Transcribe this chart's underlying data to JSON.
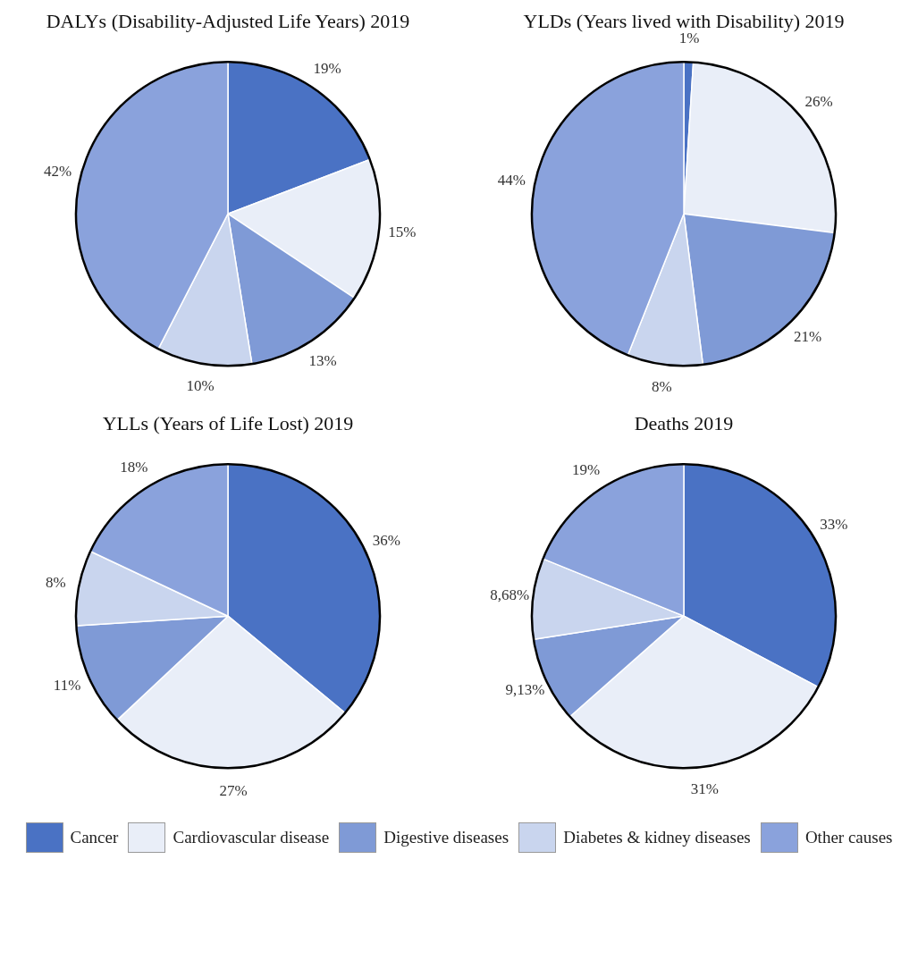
{
  "chart_data": [
    {
      "type": "pie",
      "title": "DALYs (Disability-Adjusted Life Years) 2019",
      "categories": [
        "Cancer",
        "Cardiovascular disease",
        "Digestive diseases",
        "Diabetes & kidney diseases",
        "Other causes"
      ],
      "values": [
        19,
        15,
        13,
        10,
        42
      ],
      "value_labels": [
        "19%",
        "15%",
        "13%",
        "10%",
        "42%"
      ],
      "colors": [
        "#4a72c4",
        "#e9eef8",
        "#7f9ad6",
        "#c9d5ee",
        "#8aa2dc"
      ],
      "legend": "bottom"
    },
    {
      "type": "pie",
      "title": "YLDs (Years lived with Disability) 2019",
      "categories": [
        null,
        null,
        null,
        null,
        null
      ],
      "values": [
        1,
        26,
        21,
        8,
        44
      ],
      "value_labels": [
        "1%",
        "26%",
        "21%",
        "8%",
        "44%"
      ],
      "colors": [
        "#4a72c4",
        "#e9eef8",
        "#7f9ad6",
        "#c9d5ee",
        "#8aa2dc"
      ]
    },
    {
      "type": "pie",
      "title": "YLLs (Years of Life Lost) 2019",
      "categories": [
        null,
        null,
        null,
        null,
        null
      ],
      "values": [
        36,
        27,
        11,
        8,
        18
      ],
      "value_labels": [
        "36%",
        "27%",
        "11%",
        "8%",
        "18%"
      ],
      "colors": [
        "#4a72c4",
        "#e9eef8",
        "#7f9ad6",
        "#c9d5ee",
        "#8aa2dc"
      ]
    },
    {
      "type": "pie",
      "title": "Deaths 2019",
      "categories": [
        null,
        null,
        null,
        null,
        null
      ],
      "values": [
        33,
        31,
        9.13,
        8.68,
        19
      ],
      "value_labels": [
        "33%",
        "31%",
        "9,13%",
        "8,68%",
        "19%"
      ],
      "colors": [
        "#4a72c4",
        "#e9eef8",
        "#7f9ad6",
        "#c9d5ee",
        "#8aa2dc"
      ]
    }
  ]
}
